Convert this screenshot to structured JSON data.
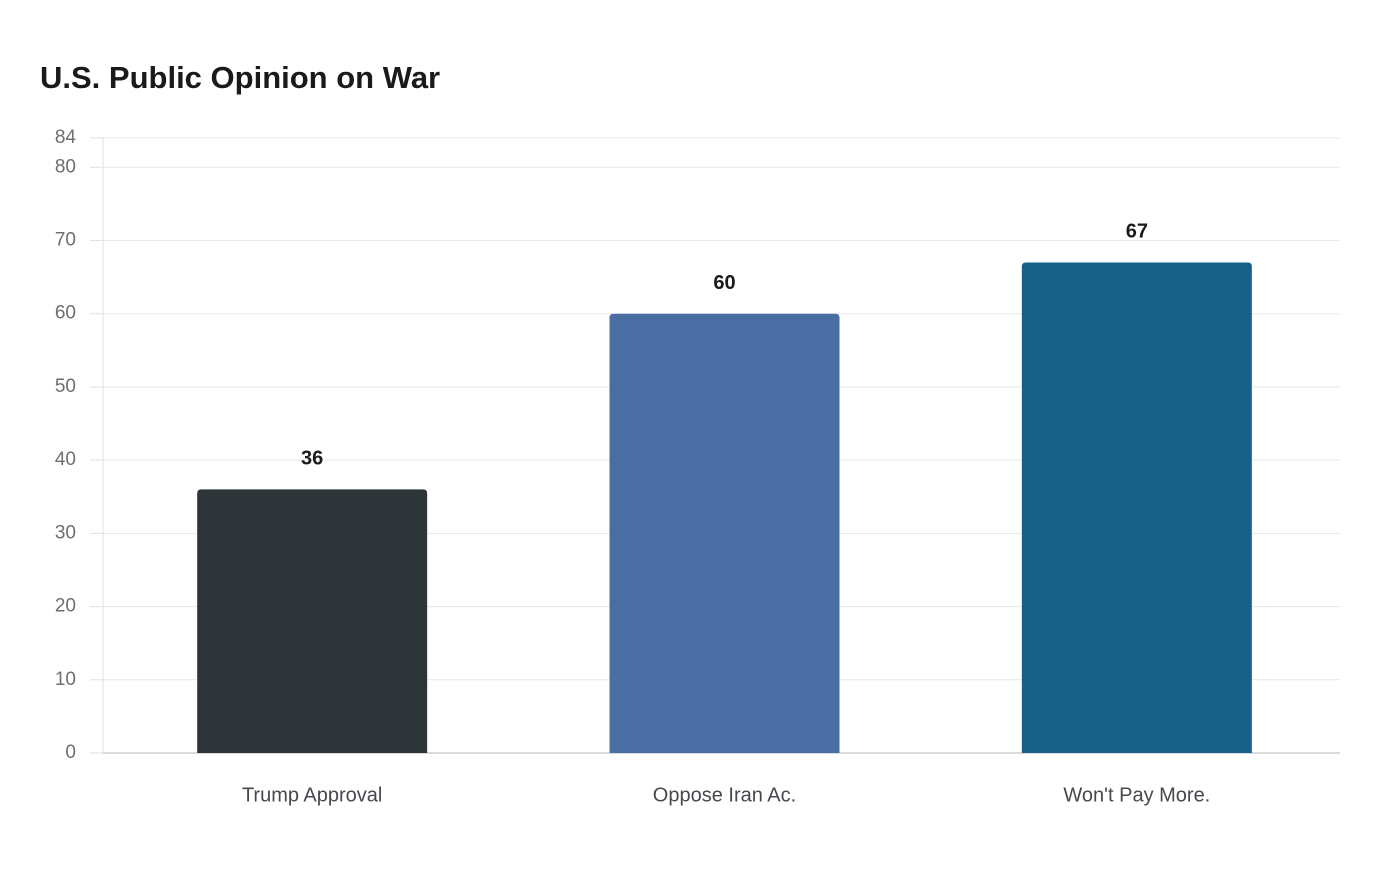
{
  "chart_data": {
    "type": "bar",
    "title": "U.S. Public Opinion on War",
    "categories": [
      "Trump Approval",
      "Oppose Iran Ac.",
      "Won't Pay More."
    ],
    "values": [
      36,
      60,
      67
    ],
    "colors": [
      "#2e3538",
      "#4a6ea3",
      "#176087"
    ],
    "ylim": [
      0,
      84
    ],
    "yticks": [
      0,
      10,
      20,
      30,
      40,
      50,
      60,
      70,
      80,
      84
    ],
    "grid": true
  }
}
